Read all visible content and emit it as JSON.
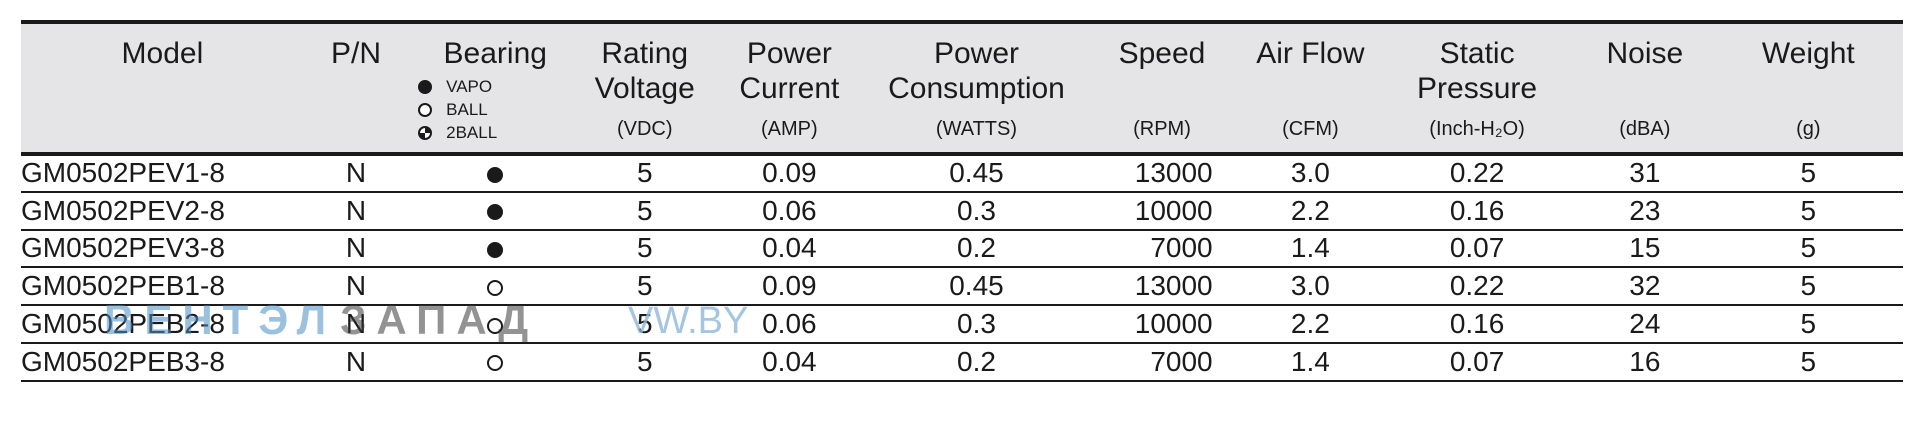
{
  "header": {
    "model": "Model",
    "pn": "P/N",
    "bearing": "Bearing",
    "bearing_legend": [
      {
        "label": "VAPO",
        "symbol": "filled"
      },
      {
        "label": "BALL",
        "symbol": "open"
      },
      {
        "label": "2BALL",
        "symbol": "split"
      }
    ],
    "rating_voltage": "Rating Voltage",
    "rating_voltage_unit": "(VDC)",
    "power_current": "Power Current",
    "power_current_unit": "(AMP)",
    "power_consumption": "Power Consumption",
    "power_consumption_unit": "(WATTS)",
    "speed": "Speed",
    "speed_unit": "(RPM)",
    "air_flow": "Air Flow",
    "air_flow_unit": "(CFM)",
    "static_pressure": "Static Pressure",
    "static_pressure_unit": "(Inch-H₂O)",
    "noise": "Noise",
    "noise_unit": "(dBA)",
    "weight": "Weight",
    "weight_unit": "(g)"
  },
  "rows": [
    {
      "model": "GM0502PEV1-8",
      "pn": "N",
      "bearing": "filled",
      "voltage": "5",
      "current": "0.09",
      "consumption": "0.45",
      "speed": "13000",
      "air_flow": "3.0",
      "static_pressure": "0.22",
      "noise": "31",
      "weight": "5"
    },
    {
      "model": "GM0502PEV2-8",
      "pn": "N",
      "bearing": "filled",
      "voltage": "5",
      "current": "0.06",
      "consumption": "0.3",
      "speed": "10000",
      "air_flow": "2.2",
      "static_pressure": "0.16",
      "noise": "23",
      "weight": "5"
    },
    {
      "model": "GM0502PEV3-8",
      "pn": "N",
      "bearing": "filled",
      "voltage": "5",
      "current": "0.04",
      "consumption": "0.2",
      "speed": "7000",
      "air_flow": "1.4",
      "static_pressure": "0.07",
      "noise": "15",
      "weight": "5"
    },
    {
      "model": "GM0502PEB1-8",
      "pn": "N",
      "bearing": "open",
      "voltage": "5",
      "current": "0.09",
      "consumption": "0.45",
      "speed": "13000",
      "air_flow": "3.0",
      "static_pressure": "0.22",
      "noise": "32",
      "weight": "5"
    },
    {
      "model": "GM0502PEB2-8",
      "pn": "N",
      "bearing": "open",
      "voltage": "5",
      "current": "0.06",
      "consumption": "0.3",
      "speed": "10000",
      "air_flow": "2.2",
      "static_pressure": "0.16",
      "noise": "24",
      "weight": "5"
    },
    {
      "model": "GM0502PEB3-8",
      "pn": "N",
      "bearing": "open",
      "voltage": "5",
      "current": "0.04",
      "consumption": "0.2",
      "speed": "7000",
      "air_flow": "1.4",
      "static_pressure": "0.07",
      "noise": "16",
      "weight": "5"
    }
  ],
  "watermark": {
    "part1": "ВЕНТЭЛ",
    "part2": "ЗАПАД",
    "part3": "VW.BY"
  },
  "colors": {
    "header_bg": "#e5e5e7",
    "rule": "#1a1a1a",
    "watermark_blue": "#4d8fc6"
  }
}
